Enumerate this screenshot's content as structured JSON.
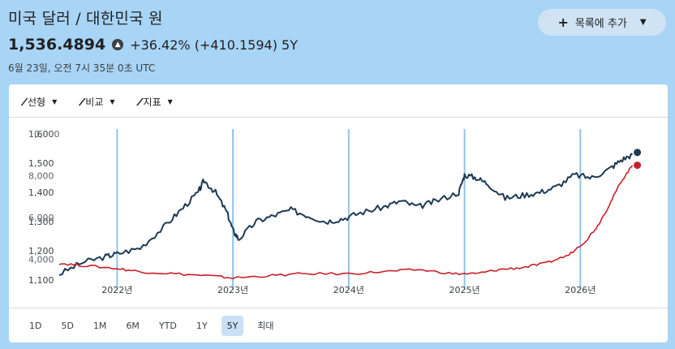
{
  "header": {
    "title": "미국 달러 / 대한민국 원",
    "add_button_label": "목록에 추가",
    "price": "1,536.4894",
    "change": "+36.42% (+410.1594) 5Y",
    "timestamp": "6월 23일, 오전 7시 35분 0초 UTC"
  },
  "toolbar": {
    "items": [
      {
        "label": "선형",
        "icon": "line-chart-icon"
      },
      {
        "label": "비교",
        "icon": "compare-icon"
      },
      {
        "label": "지표",
        "icon": "indicator-icon"
      }
    ]
  },
  "ranges": {
    "items": [
      "1D",
      "5D",
      "1M",
      "6M",
      "YTD",
      "1Y",
      "5Y",
      "최대"
    ],
    "active": "5Y"
  },
  "colors": {
    "background": "#a8d4f5",
    "primary_series": "#1c3a55",
    "compare_series": "#c8202a",
    "year_marker": "#8fc4ec",
    "active_range": "#c8e1f7"
  },
  "chart_data": {
    "type": "line",
    "x_labels": [
      "2022년",
      "2023년",
      "2024년",
      "2025년",
      "2026년"
    ],
    "y_left_ticks": [
      "1,100",
      "1,200",
      "1,300",
      "1,400",
      "1,500",
      "1,600"
    ],
    "y_right_ticks": [
      "4,000",
      "6,000",
      "8,000",
      "10,000"
    ],
    "grid": false,
    "series": [
      {
        "color": "#1c3a55",
        "axis": "left",
        "x": [
          2021.5,
          2021.7,
          2021.9,
          2022.0,
          2022.2,
          2022.4,
          2022.55,
          2022.7,
          2022.75,
          2022.85,
          2022.95,
          2023.0,
          2023.05,
          2023.2,
          2023.35,
          2023.5,
          2023.65,
          2023.8,
          2023.95,
          2024.1,
          2024.3,
          2024.45,
          2024.6,
          2024.75,
          2024.95,
          2025.0,
          2025.1,
          2025.2,
          2025.35,
          2025.5,
          2025.65,
          2025.8,
          2025.95,
          2026.1,
          2026.25,
          2026.35,
          2026.45
        ],
        "y": [
          1120,
          1160,
          1180,
          1190,
          1210,
          1280,
          1340,
          1400,
          1440,
          1400,
          1330,
          1270,
          1240,
          1300,
          1320,
          1340,
          1320,
          1300,
          1310,
          1330,
          1350,
          1370,
          1350,
          1370,
          1400,
          1460,
          1450,
          1430,
          1380,
          1390,
          1400,
          1420,
          1460,
          1450,
          1480,
          1510,
          1530
        ]
      },
      {
        "color": "#c8202a",
        "axis": "right",
        "x": [
          2021.5,
          2021.7,
          2022.0,
          2022.2,
          2022.5,
          2022.8,
          2023.0,
          2023.3,
          2023.6,
          2024.0,
          2024.3,
          2024.6,
          2024.9,
          2025.1,
          2025.3,
          2025.5,
          2025.7,
          2025.9,
          2026.05,
          2026.15,
          2026.25,
          2026.35,
          2026.45
        ],
        "y": [
          3800,
          3700,
          3550,
          3400,
          3300,
          3200,
          3100,
          3200,
          3300,
          3300,
          3400,
          3500,
          3300,
          3300,
          3500,
          3600,
          3800,
          4200,
          4900,
          5600,
          6600,
          7700,
          8500
        ]
      }
    ],
    "end_markers": [
      {
        "series": 0,
        "value": 1536.4894
      },
      {
        "series": 1,
        "value": 8500
      }
    ]
  }
}
